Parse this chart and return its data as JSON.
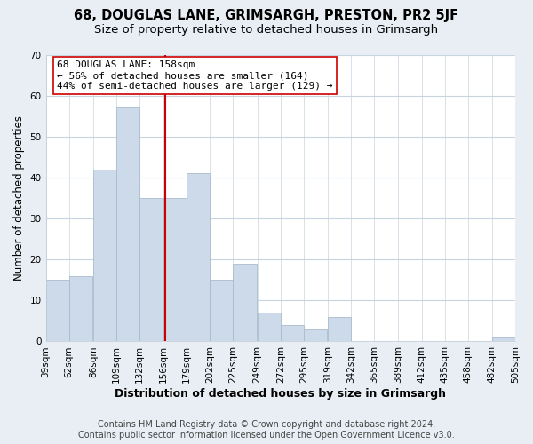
{
  "title": "68, DOUGLAS LANE, GRIMSARGH, PRESTON, PR2 5JF",
  "subtitle": "Size of property relative to detached houses in Grimsargh",
  "xlabel": "Distribution of detached houses by size in Grimsargh",
  "ylabel": "Number of detached properties",
  "bar_left_edges": [
    39,
    62,
    86,
    109,
    132,
    156,
    179,
    202,
    225,
    249,
    272,
    295,
    319,
    342,
    365,
    389,
    412,
    435,
    458,
    482
  ],
  "bar_heights": [
    15,
    16,
    42,
    57,
    35,
    35,
    41,
    15,
    19,
    7,
    4,
    3,
    6,
    0,
    0,
    0,
    0,
    0,
    0,
    1
  ],
  "bin_width": 23,
  "bar_color": "#ccdaea",
  "bar_edge_color": "#aabcce",
  "vline_x": 158,
  "vline_color": "#cc0000",
  "ylim": [
    0,
    70
  ],
  "yticks": [
    0,
    10,
    20,
    30,
    40,
    50,
    60,
    70
  ],
  "x_tick_labels": [
    "39sqm",
    "62sqm",
    "86sqm",
    "109sqm",
    "132sqm",
    "156sqm",
    "179sqm",
    "202sqm",
    "225sqm",
    "249sqm",
    "272sqm",
    "295sqm",
    "319sqm",
    "342sqm",
    "365sqm",
    "389sqm",
    "412sqm",
    "435sqm",
    "458sqm",
    "482sqm",
    "505sqm"
  ],
  "annotation_title": "68 DOUGLAS LANE: 158sqm",
  "annotation_line1": "← 56% of detached houses are smaller (164)",
  "annotation_line2": "44% of semi-detached houses are larger (129) →",
  "annotation_box_color": "#ffffff",
  "annotation_box_edge": "#cc0000",
  "footer_line1": "Contains HM Land Registry data © Crown copyright and database right 2024.",
  "footer_line2": "Contains public sector information licensed under the Open Government Licence v3.0.",
  "background_color": "#e8eef4",
  "plot_bg_color": "#ffffff",
  "title_fontsize": 10.5,
  "subtitle_fontsize": 9.5,
  "xlabel_fontsize": 9,
  "ylabel_fontsize": 8.5,
  "tick_fontsize": 7.5,
  "annotation_fontsize": 8,
  "footer_fontsize": 7
}
